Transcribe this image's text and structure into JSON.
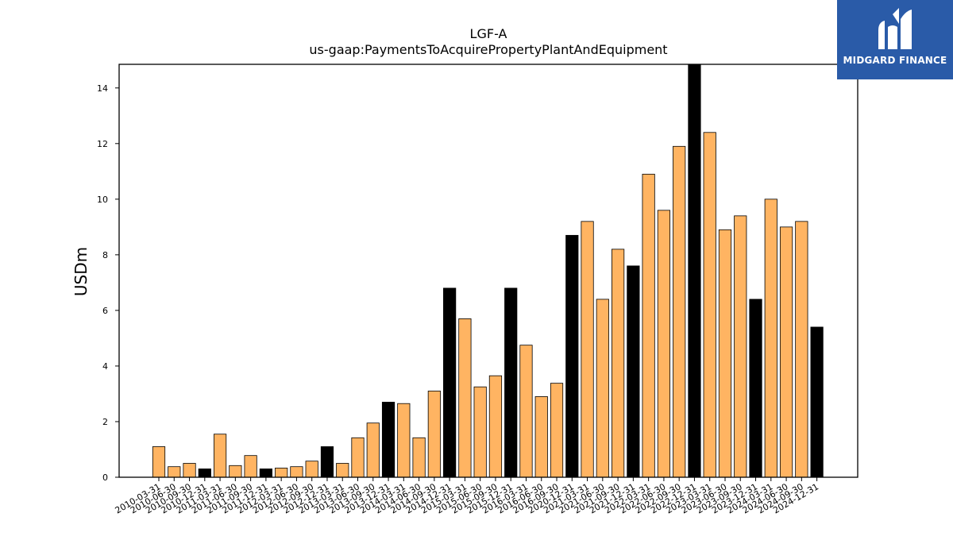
{
  "chart_data": {
    "type": "bar",
    "title": "LGF-A",
    "subtitle": "us-gaap:PaymentsToAcquirePropertyPlantAndEquipment",
    "xlabel": "",
    "ylabel": "USDm",
    "ylim": [
      0,
      14.85
    ],
    "yticks": [
      0,
      2,
      4,
      6,
      8,
      10,
      12,
      14
    ],
    "grid": false,
    "colors": {
      "quarter": "#ffb462",
      "fiscal_year_end": "#000000",
      "edge": "#000000"
    },
    "categories": [
      "2010-03-31",
      "2010-06-30",
      "2010-09-30",
      "2010-12-31",
      "2011-03-31",
      "2011-06-30",
      "2011-09-30",
      "2011-12-31",
      "2012-03-31",
      "2012-06-30",
      "2012-09-30",
      "2012-12-31",
      "2013-03-31",
      "2013-06-30",
      "2013-09-30",
      "2013-12-31",
      "2014-03-31",
      "2014-06-30",
      "2014-09-30",
      "2014-12-31",
      "2015-03-31",
      "2015-06-30",
      "2015-09-30",
      "2015-12-31",
      "2016-03-31",
      "2016-06-30",
      "2016-09-30",
      "2020-12-31",
      "2021-03-31",
      "2021-06-30",
      "2021-09-30",
      "2021-12-31",
      "2022-03-31",
      "2022-06-30",
      "2022-09-30",
      "2022-12-31",
      "2023-03-31",
      "2023-06-30",
      "2023-09-30",
      "2023-12-31",
      "2024-03-31",
      "2024-06-30",
      "2024-09-30",
      "2024-12-31"
    ],
    "values": [
      1.1,
      0.38,
      0.5,
      0.3,
      1.55,
      0.42,
      0.78,
      0.3,
      0.33,
      0.38,
      0.58,
      1.1,
      0.5,
      1.42,
      1.95,
      2.7,
      2.65,
      1.42,
      3.1,
      6.8,
      5.7,
      3.25,
      3.65,
      6.8,
      4.75,
      2.9,
      3.38,
      8.7,
      9.2,
      6.4,
      8.2,
      7.6,
      10.9,
      9.6,
      11.9,
      14.85,
      12.4,
      8.9,
      9.4,
      6.4,
      10.0,
      9.0,
      9.2,
      5.4
    ],
    "highlight": [
      false,
      false,
      false,
      true,
      false,
      false,
      false,
      true,
      false,
      false,
      false,
      true,
      false,
      false,
      false,
      true,
      false,
      false,
      false,
      true,
      false,
      false,
      false,
      true,
      false,
      false,
      false,
      true,
      false,
      false,
      false,
      true,
      false,
      false,
      false,
      true,
      false,
      false,
      false,
      true,
      false,
      false,
      false,
      true
    ]
  },
  "logo": {
    "text": "MIDGARD FINANCE"
  }
}
